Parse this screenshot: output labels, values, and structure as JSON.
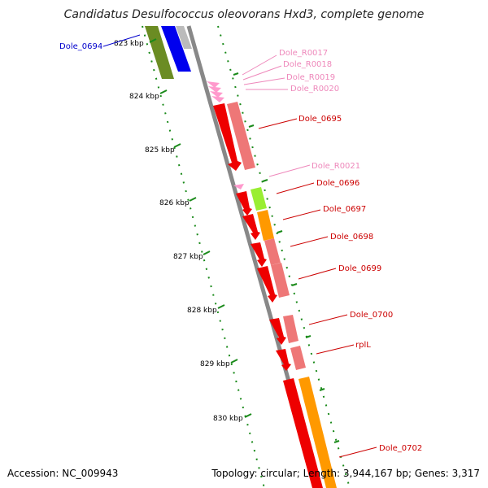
{
  "title": "Candidatus Desulfococcus oleovorans Hxd3, complete genome",
  "footer": {
    "accession": "Accession: NC_009943",
    "summary": "Topology: circular; Length: 3,944,167 bp; Genes: 3,317"
  },
  "colors": {
    "backbone": "#888888",
    "tick": "#1a8a1a",
    "cds_forward_red": "#ee0000",
    "cds_pink": "#ee7777",
    "cds_orange": "#ff9900",
    "cds_lightgreen": "#99ee33",
    "cds_olive": "#6b8c23",
    "cds_blue": "#0000ee",
    "rna_pink": "#ff99cc",
    "label_red": "#cc0000",
    "label_pink": "#ee88bb",
    "label_blue": "#0000cc"
  },
  "scale": {
    "ticks": [
      "823 kbp",
      "824 kbp",
      "825 kbp",
      "826 kbp",
      "827 kbp",
      "828 kbp",
      "829 kbp",
      "830 kbp"
    ]
  },
  "labels": [
    {
      "id": "dole-0694",
      "text": "Dole_0694",
      "color": "blue"
    },
    {
      "id": "dole-r0017",
      "text": "Dole_R0017",
      "color": "pink"
    },
    {
      "id": "dole-r0018",
      "text": "Dole_R0018",
      "color": "pink"
    },
    {
      "id": "dole-r0019",
      "text": "Dole_R0019",
      "color": "pink"
    },
    {
      "id": "dole-r0020",
      "text": "Dole_R0020",
      "color": "pink"
    },
    {
      "id": "dole-0695",
      "text": "Dole_0695",
      "color": "red"
    },
    {
      "id": "dole-r0021",
      "text": "Dole_R0021",
      "color": "pink"
    },
    {
      "id": "dole-0696",
      "text": "Dole_0696",
      "color": "red"
    },
    {
      "id": "dole-0697",
      "text": "Dole_0697",
      "color": "red"
    },
    {
      "id": "dole-0698",
      "text": "Dole_0698",
      "color": "red"
    },
    {
      "id": "dole-0699",
      "text": "Dole_0699",
      "color": "red"
    },
    {
      "id": "dole-0700",
      "text": "Dole_0700",
      "color": "red"
    },
    {
      "id": "rpll",
      "text": "rplL",
      "color": "red"
    },
    {
      "id": "dole-0702",
      "text": "Dole_0702",
      "color": "red"
    }
  ]
}
